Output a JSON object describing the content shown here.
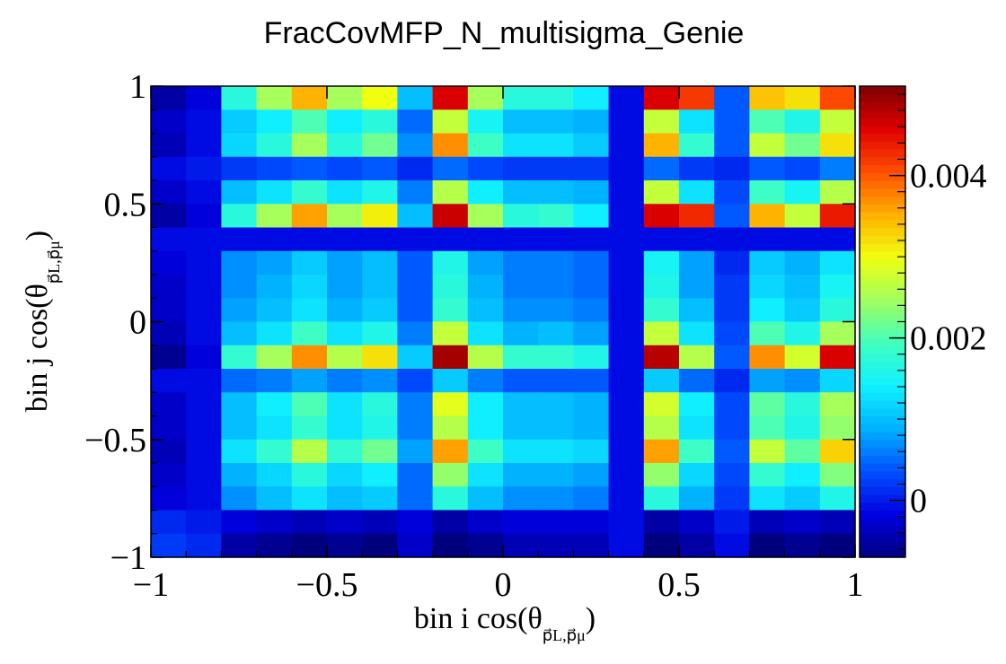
{
  "chart_data": {
    "type": "heatmap",
    "title": "FracCovMFP_N_multisigma_Genie",
    "xlabel": {
      "main": "bin i cos(θ",
      "sub": "p⃗L,p⃗μ",
      "close": ")"
    },
    "ylabel": {
      "main": "bin j cos(θ",
      "sub": "p⃗L,p⃗μ",
      "close": ")"
    },
    "xlim": [
      -1,
      1
    ],
    "ylim": [
      -1,
      1
    ],
    "xticks": [
      {
        "value": -1,
        "label": "−1"
      },
      {
        "value": -0.5,
        "label": "−0.5"
      },
      {
        "value": 0,
        "label": "0"
      },
      {
        "value": 0.5,
        "label": "0.5"
      },
      {
        "value": 1,
        "label": "1"
      }
    ],
    "yticks": [
      {
        "value": -1,
        "label": "−1"
      },
      {
        "value": -0.5,
        "label": "−0.5"
      },
      {
        "value": 0,
        "label": "0"
      },
      {
        "value": 0.5,
        "label": "0.5"
      },
      {
        "value": 1,
        "label": "1"
      }
    ],
    "zlim": [
      -0.0007,
      0.0051
    ],
    "zticks": [
      {
        "value": 0,
        "label": "0"
      },
      {
        "value": 0.002,
        "label": "0.002"
      },
      {
        "value": 0.004,
        "label": "0.004"
      }
    ],
    "colormap": [
      "#00007f",
      "#0000e0",
      "#0050ff",
      "#00b0ff",
      "#10f0ff",
      "#40ffc0",
      "#a0ff60",
      "#f0ff10",
      "#ffb000",
      "#ff5000",
      "#e00000",
      "#800000"
    ],
    "nbins": 20,
    "bin_edges": [
      -1,
      -0.9,
      -0.8,
      -0.7,
      -0.6,
      -0.5,
      -0.4,
      -0.3,
      -0.2,
      -0.1,
      0,
      0.1,
      0.2,
      0.3,
      0.4,
      0.5,
      0.6,
      0.7,
      0.8,
      0.9,
      1
    ],
    "z_order": "rows listed from top (y bin 20) to bottom (y bin 1); columns from x bin 1 to 20",
    "z": [
      [
        -0.0005,
        -0.0002,
        0.0017,
        0.0025,
        0.0035,
        0.0025,
        0.003,
        0.001,
        0.0046,
        0.0025,
        0.0017,
        0.0017,
        0.0014,
        -0.0001,
        0.0046,
        0.0042,
        0.0004,
        0.0034,
        0.0032,
        0.0041
      ],
      [
        -0.0003,
        -0.0001,
        0.0011,
        0.0014,
        0.002,
        0.0014,
        0.0017,
        0.0005,
        0.0027,
        0.0015,
        0.001,
        0.001,
        0.0009,
        -0.0001,
        0.0027,
        0.0013,
        0.0004,
        0.002,
        0.0016,
        0.0027
      ],
      [
        -0.0004,
        -0.0001,
        0.0012,
        0.0017,
        0.0025,
        0.0017,
        0.0022,
        0.0007,
        0.0037,
        0.0019,
        0.0013,
        0.0013,
        0.0011,
        -0.0001,
        0.0035,
        0.0018,
        0.0004,
        0.0027,
        0.0022,
        0.0032
      ],
      [
        -0.0001,
        0.0,
        0.0002,
        0.0003,
        0.0004,
        0.0003,
        0.0004,
        0.0001,
        0.0005,
        0.0003,
        0.0002,
        0.0002,
        0.0002,
        -0.0001,
        0.0005,
        0.0002,
        0.0001,
        0.0004,
        0.0003,
        0.0006
      ],
      [
        -0.0003,
        -0.0001,
        0.001,
        0.0013,
        0.0018,
        0.0013,
        0.0016,
        0.0006,
        0.0026,
        0.0014,
        0.001,
        0.001,
        0.0009,
        -0.0001,
        0.0027,
        0.0013,
        0.0003,
        0.0019,
        0.0015,
        0.0026
      ],
      [
        -0.0005,
        -0.0002,
        0.0017,
        0.0025,
        0.0036,
        0.0025,
        0.0031,
        0.001,
        0.0047,
        0.0025,
        0.0017,
        0.0018,
        0.0014,
        -0.0001,
        0.0046,
        0.0043,
        0.0004,
        0.0035,
        0.0027,
        0.0044
      ],
      [
        -0.0001,
        -0.0001,
        -0.0001,
        -0.0001,
        -0.0001,
        -0.0001,
        -0.0001,
        -0.0001,
        -0.0001,
        -0.0001,
        -0.0001,
        -0.0001,
        -0.0001,
        -0.0001,
        -0.0001,
        -0.0001,
        -0.0001,
        -0.0001,
        -0.0001,
        -0.0001
      ],
      [
        -0.0002,
        -0.0001,
        0.0007,
        0.0008,
        0.0011,
        0.0008,
        0.001,
        0.0004,
        0.0016,
        0.0008,
        0.0006,
        0.0006,
        0.0005,
        -0.0001,
        0.0015,
        0.0008,
        0.0001,
        0.0011,
        0.0009,
        0.0013
      ],
      [
        -0.0003,
        -0.0001,
        0.0007,
        0.0009,
        0.0012,
        0.0008,
        0.001,
        0.0004,
        0.0017,
        0.0009,
        0.0006,
        0.0006,
        0.0005,
        -0.0001,
        0.0016,
        0.0008,
        0.0002,
        0.0012,
        0.001,
        0.0015
      ],
      [
        -0.0003,
        -0.0001,
        0.0008,
        0.001,
        0.0013,
        0.0009,
        0.0011,
        0.0004,
        0.0018,
        0.001,
        0.0007,
        0.0007,
        0.0006,
        -0.0001,
        0.0018,
        0.001,
        0.0002,
        0.0014,
        0.0011,
        0.0017
      ],
      [
        -0.0004,
        -0.0001,
        0.001,
        0.0013,
        0.0019,
        0.0013,
        0.0016,
        0.0006,
        0.0027,
        0.0013,
        0.0009,
        0.001,
        0.0008,
        -0.0001,
        0.0027,
        0.0013,
        0.0003,
        0.002,
        0.0016,
        0.0025
      ],
      [
        -0.0006,
        -0.0002,
        0.0018,
        0.0025,
        0.0037,
        0.0026,
        0.0032,
        0.0011,
        0.0049,
        0.0026,
        0.0018,
        0.0018,
        0.0016,
        -0.0001,
        0.0048,
        0.0026,
        0.0004,
        0.0037,
        0.0028,
        0.0046
      ],
      [
        -0.0001,
        -0.0001,
        0.0005,
        0.0006,
        0.0008,
        0.0006,
        0.0007,
        0.0003,
        0.0011,
        0.0006,
        0.0004,
        0.0004,
        0.0004,
        -0.0001,
        0.0011,
        0.0005,
        0.0001,
        0.0008,
        0.0007,
        0.0012
      ],
      [
        -0.0003,
        -0.0001,
        0.001,
        0.0014,
        0.002,
        0.0013,
        0.0017,
        0.0006,
        0.0029,
        0.0014,
        0.001,
        0.001,
        0.0009,
        -0.0001,
        0.0028,
        0.0014,
        0.0003,
        0.0021,
        0.0017,
        0.0025
      ],
      [
        -0.0003,
        -0.0001,
        0.001,
        0.0013,
        0.0018,
        0.0013,
        0.0016,
        0.0006,
        0.0026,
        0.0014,
        0.001,
        0.001,
        0.0009,
        -0.0001,
        0.0026,
        0.0013,
        0.0003,
        0.002,
        0.0016,
        0.0024
      ],
      [
        -0.0004,
        -0.0001,
        0.0013,
        0.0018,
        0.0026,
        0.0018,
        0.0022,
        0.0008,
        0.0036,
        0.0019,
        0.0013,
        0.0013,
        0.0012,
        -0.0001,
        0.0036,
        0.0019,
        0.0004,
        0.0027,
        0.0021,
        0.0033
      ],
      [
        -0.0003,
        -0.0001,
        0.0009,
        0.0012,
        0.0017,
        0.0012,
        0.0014,
        0.0005,
        0.0024,
        0.0013,
        0.0009,
        0.0009,
        0.0008,
        -0.0001,
        0.0024,
        0.0012,
        0.0003,
        0.0018,
        0.0014,
        0.0023
      ],
      [
        -0.0002,
        -0.0001,
        0.0007,
        0.001,
        0.0013,
        0.001,
        0.0011,
        0.0005,
        0.0017,
        0.001,
        0.0007,
        0.0007,
        0.0006,
        -0.0001,
        0.0017,
        0.0009,
        0.0002,
        0.0013,
        0.0011,
        0.0016
      ],
      [
        0.0001,
        0.0,
        -0.0002,
        -0.0003,
        -0.0004,
        -0.0003,
        -0.0004,
        -0.0002,
        -0.0005,
        -0.0003,
        -0.0002,
        -0.0002,
        -0.0002,
        -0.0001,
        -0.0005,
        -0.0003,
        0.0,
        -0.0004,
        -0.0003,
        -0.0004
      ],
      [
        0.0002,
        0.0001,
        -0.0005,
        -0.0006,
        -0.0007,
        -0.0006,
        -0.0007,
        -0.0003,
        -0.0008,
        -0.0006,
        -0.0004,
        -0.0004,
        -0.0004,
        -0.0001,
        -0.0008,
        -0.0005,
        -0.0001,
        -0.0007,
        -0.0006,
        -0.0008
      ]
    ]
  }
}
